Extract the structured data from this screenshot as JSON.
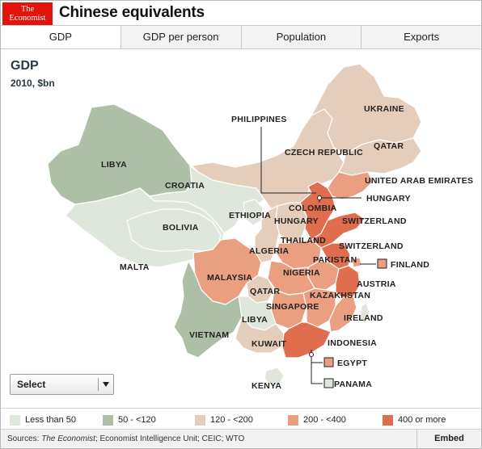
{
  "header": {
    "logo_line1": "The",
    "logo_line2": "Economist",
    "title": "Chinese equivalents"
  },
  "tabs": [
    {
      "label": "GDP",
      "active": true
    },
    {
      "label": "GDP per person",
      "active": false
    },
    {
      "label": "Population",
      "active": false
    },
    {
      "label": "Exports",
      "active": false
    }
  ],
  "map": {
    "title": "GDP",
    "subtitle": "2010, $bn",
    "colors": {
      "lt50": "#dfe6dc",
      "50-120": "#aebfa8",
      "120-200": "#e5cdbb",
      "200-400": "#ea9f80",
      "400plus": "#df6d4e",
      "border": "#ffffff"
    },
    "labels": {
      "libya_n": "LIBYA",
      "croatia": "CROATIA",
      "bolivia": "BOLIVIA",
      "malta": "MALTA",
      "malaysia": "MALAYSIA",
      "vietnam": "VIETNAM",
      "philippines": "PHILIPPINES",
      "ukraine": "UKRAINE",
      "qatar_ne": "QATAR",
      "czech": "CZECH REPUBLIC",
      "uae": "UNITED ARAB EMIRATES",
      "hungary_e": "HUNGARY",
      "colombia": "COLOMBIA",
      "ethiopia": "ETHIOPIA",
      "hungary_c": "HUNGARY",
      "switzerland_n": "SWITZERLAND",
      "thailand": "THAILAND",
      "algeria": "ALGERIA",
      "switzerland_s": "SWITZERLAND",
      "pakistan": "PAKISTAN",
      "finland": "FINLAND",
      "nigeria": "NIGERIA",
      "austria": "AUSTRIA",
      "qatar_c": "QATAR",
      "kazakhstan": "KAZAKHSTAN",
      "singapore": "SINGAPORE",
      "libya_s": "LIBYA",
      "ireland": "IRELAND",
      "kuwait": "KUWAIT",
      "indonesia": "INDONESIA",
      "egypt": "EGYPT",
      "panama": "PANAMA",
      "kenya": "KENYA"
    }
  },
  "select": {
    "label": "Select"
  },
  "legend": [
    {
      "label": "Less than 50",
      "color": "#dfe6dc"
    },
    {
      "label": "50 - <120",
      "color": "#aebfa8"
    },
    {
      "label": "120 - <200",
      "color": "#e5cdbb"
    },
    {
      "label": "200 - <400",
      "color": "#ea9f80"
    },
    {
      "label": "400 or more",
      "color": "#df6d4e"
    }
  ],
  "footer": {
    "sources_prefix": "Sources: ",
    "sources_italic": "The Economist",
    "sources_rest": "; Economist Intelligence Unit; CEIC; WTO",
    "embed": "Embed"
  }
}
